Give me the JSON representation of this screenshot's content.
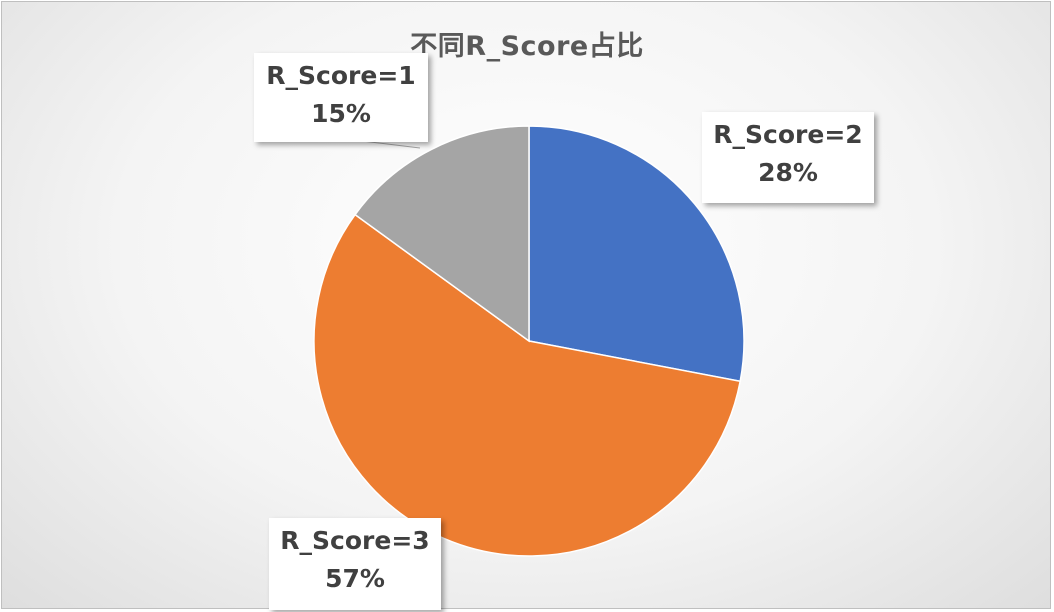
{
  "chart_data": {
    "type": "pie",
    "title": "不同R_Score占比",
    "slices": [
      {
        "label": "R_Score=2",
        "value": 28,
        "percent_label": "28%",
        "color": "#4472C4"
      },
      {
        "label": "R_Score=3",
        "value": 57,
        "percent_label": "57%",
        "color": "#ED7D31"
      },
      {
        "label": "R_Score=1",
        "value": 15,
        "percent_label": "15%",
        "color": "#A5A5A5"
      }
    ],
    "start_angle_deg": 0,
    "direction": "clockwise",
    "legend": "none"
  }
}
